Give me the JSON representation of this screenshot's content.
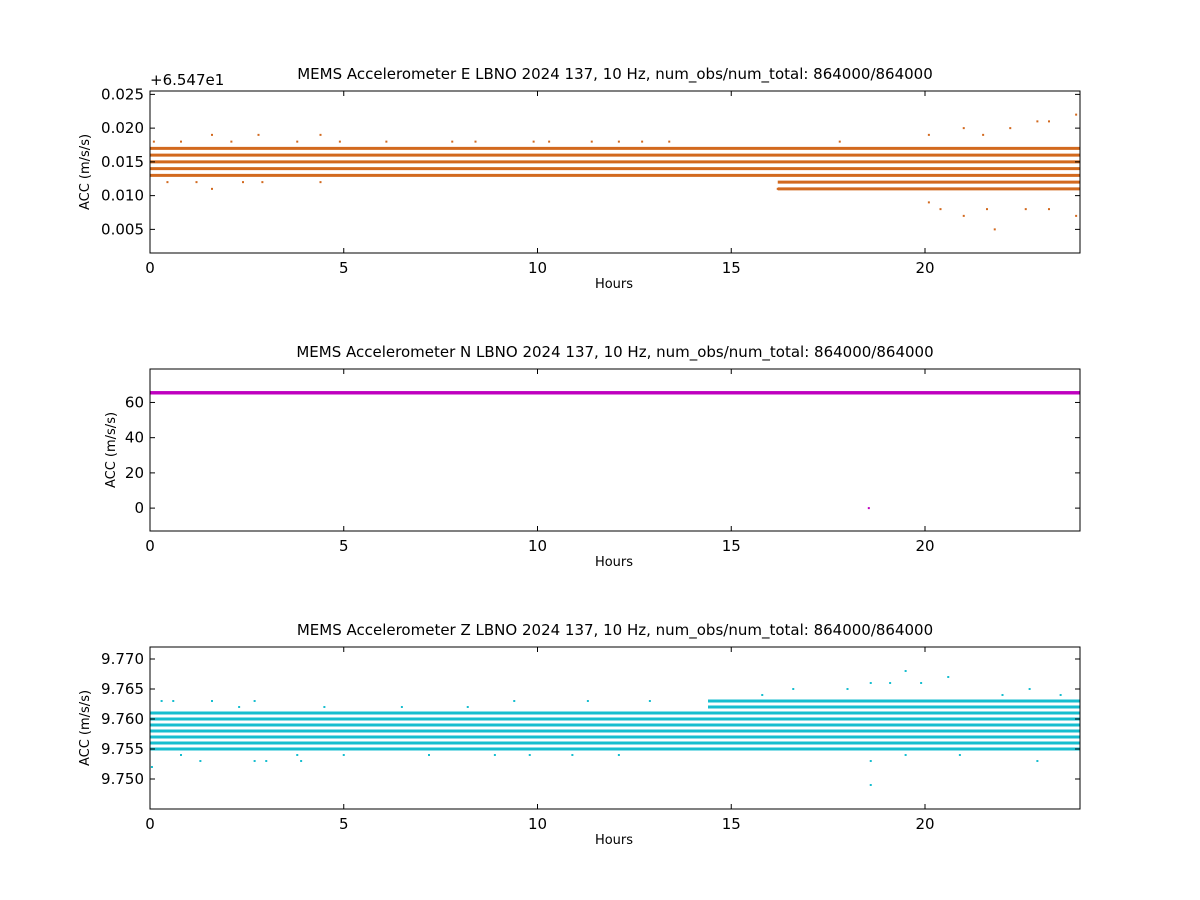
{
  "chart_data": [
    {
      "type": "scatter",
      "title": "MEMS Accelerometer E LBNO 2024 137, 10 Hz, num_obs/num_total: 864000/864000",
      "xlabel": "Hours",
      "ylabel": "ACC (m/s/s)",
      "y_offset_label": "+6.547e1",
      "y_offset": 65.47,
      "xlim": [
        0,
        24
      ],
      "ylim": [
        0.0015,
        0.0255
      ],
      "xticks": [
        0,
        5,
        10,
        15,
        20
      ],
      "yticks": [
        0.005,
        0.01,
        0.015,
        0.02,
        0.025
      ],
      "ytick_labels": [
        "0.005",
        "0.010",
        "0.015",
        "0.020",
        "0.025"
      ],
      "color": "#d2691e",
      "grid": false,
      "series": [
        {
          "band_levels": [
            0.013,
            0.014,
            0.015,
            0.016,
            0.017
          ],
          "late_band_levels": [
            0.011,
            0.012
          ],
          "late_band_start_hour": 16.2,
          "sparse_points": [
            [
              0.1,
              0.018
            ],
            [
              0.45,
              0.012
            ],
            [
              0.8,
              0.018
            ],
            [
              1.2,
              0.012
            ],
            [
              1.6,
              0.019
            ],
            [
              1.6,
              0.011
            ],
            [
              2.1,
              0.018
            ],
            [
              2.4,
              0.012
            ],
            [
              2.8,
              0.019
            ],
            [
              2.9,
              0.012
            ],
            [
              3.8,
              0.018
            ],
            [
              4.4,
              0.019
            ],
            [
              4.4,
              0.012
            ],
            [
              4.9,
              0.018
            ],
            [
              6.1,
              0.018
            ],
            [
              6.5,
              0.013
            ],
            [
              7.8,
              0.018
            ],
            [
              8.4,
              0.018
            ],
            [
              9.9,
              0.018
            ],
            [
              10.3,
              0.018
            ],
            [
              11.4,
              0.018
            ],
            [
              12.1,
              0.018
            ],
            [
              12.7,
              0.018
            ],
            [
              13.4,
              0.018
            ],
            [
              16.2,
              0.011
            ],
            [
              17.8,
              0.018
            ],
            [
              18.7,
              0.011
            ],
            [
              20.1,
              0.019
            ],
            [
              20.1,
              0.009
            ],
            [
              20.4,
              0.008
            ],
            [
              21.0,
              0.02
            ],
            [
              21.0,
              0.007
            ],
            [
              21.5,
              0.019
            ],
            [
              21.6,
              0.008
            ],
            [
              21.8,
              0.005
            ],
            [
              22.2,
              0.02
            ],
            [
              22.6,
              0.008
            ],
            [
              22.9,
              0.021
            ],
            [
              23.2,
              0.021
            ],
            [
              23.2,
              0.008
            ],
            [
              23.9,
              0.022
            ],
            [
              23.9,
              0.007
            ]
          ]
        }
      ]
    },
    {
      "type": "scatter",
      "title": "MEMS Accelerometer N LBNO 2024 137, 10 Hz, num_obs/num_total: 864000/864000",
      "xlabel": "Hours",
      "ylabel": "ACC (m/s/s)",
      "xlim": [
        0,
        24
      ],
      "ylim": [
        -13,
        79
      ],
      "xticks": [
        0,
        5,
        10,
        15,
        20
      ],
      "yticks": [
        0,
        20,
        40,
        60
      ],
      "ytick_labels": [
        "0",
        "20",
        "40",
        "60"
      ],
      "color": "#bf00bf",
      "grid": false,
      "series": [
        {
          "band_levels": [
            65.4,
            65.5,
            65.6
          ],
          "sparse_points": [
            [
              18.55,
              0.0
            ]
          ]
        }
      ]
    },
    {
      "type": "scatter",
      "title": "MEMS Accelerometer Z LBNO 2024 137, 10 Hz, num_obs/num_total: 864000/864000",
      "xlabel": "Hours",
      "ylabel": "ACC (m/s/s)",
      "xlim": [
        0,
        24
      ],
      "ylim": [
        9.745,
        9.772
      ],
      "xticks": [
        0,
        5,
        10,
        15,
        20
      ],
      "yticks": [
        9.75,
        9.755,
        9.76,
        9.765,
        9.77
      ],
      "ytick_labels": [
        "9.750",
        "9.755",
        "9.760",
        "9.765",
        "9.770"
      ],
      "color": "#17becf",
      "grid": false,
      "series": [
        {
          "band_levels": [
            9.755,
            9.756,
            9.757,
            9.758,
            9.759,
            9.76,
            9.761
          ],
          "late_band_levels": [
            9.762,
            9.763
          ],
          "late_band_start_hour": 14.4,
          "sparse_points": [
            [
              0.05,
              9.752
            ],
            [
              0.3,
              9.763
            ],
            [
              0.6,
              9.763
            ],
            [
              0.8,
              9.754
            ],
            [
              1.3,
              9.753
            ],
            [
              1.6,
              9.763
            ],
            [
              2.3,
              9.762
            ],
            [
              2.7,
              9.763
            ],
            [
              2.7,
              9.753
            ],
            [
              3.0,
              9.753
            ],
            [
              3.8,
              9.754
            ],
            [
              3.9,
              9.753
            ],
            [
              4.5,
              9.762
            ],
            [
              5.0,
              9.754
            ],
            [
              6.5,
              9.762
            ],
            [
              7.2,
              9.754
            ],
            [
              8.2,
              9.762
            ],
            [
              8.9,
              9.754
            ],
            [
              9.4,
              9.763
            ],
            [
              9.8,
              9.754
            ],
            [
              10.9,
              9.754
            ],
            [
              11.3,
              9.763
            ],
            [
              12.1,
              9.754
            ],
            [
              12.9,
              9.763
            ],
            [
              15.2,
              9.755
            ],
            [
              15.8,
              9.764
            ],
            [
              16.6,
              9.765
            ],
            [
              17.3,
              9.755
            ],
            [
              18.0,
              9.765
            ],
            [
              18.6,
              9.766
            ],
            [
              18.6,
              9.753
            ],
            [
              18.6,
              9.749
            ],
            [
              19.1,
              9.766
            ],
            [
              19.5,
              9.768
            ],
            [
              19.5,
              9.754
            ],
            [
              19.9,
              9.766
            ],
            [
              20.6,
              9.767
            ],
            [
              20.9,
              9.754
            ],
            [
              22.0,
              9.764
            ],
            [
              22.7,
              9.765
            ],
            [
              22.9,
              9.753
            ],
            [
              23.5,
              9.764
            ]
          ]
        }
      ]
    }
  ]
}
